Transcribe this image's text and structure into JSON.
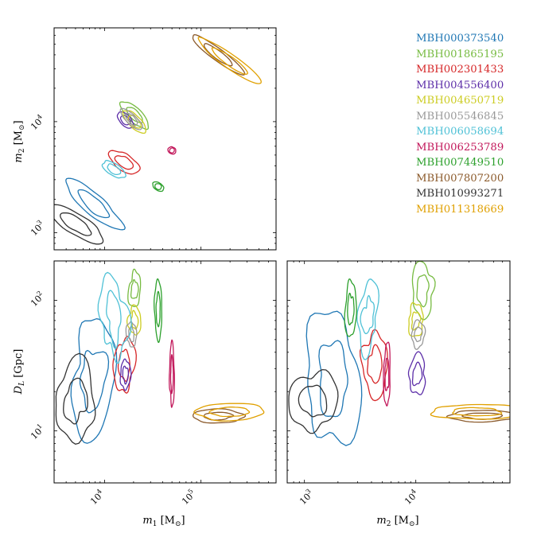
{
  "chart_data": {
    "type": "contour",
    "panels": [
      {
        "id": "m1_m2",
        "xlabel": "",
        "ylabel": "m_2 [M_⊙]",
        "ylabel_main": "m",
        "ylabel_sub": "2",
        "ylabel_unit": " [M",
        "ylabel_unit_sub": "⊙",
        "ylabel_close": "]",
        "xscale": "log",
        "yscale": "log",
        "xlim": [
          3000,
          600000
        ],
        "ylim": [
          700,
          70000
        ],
        "yticks": [
          {
            "base": "10",
            "exp": "3",
            "value": 1000
          },
          {
            "base": "10",
            "exp": "4",
            "value": 10000
          }
        ]
      },
      {
        "id": "m1_dl",
        "xlabel": "m_1 [M_⊙]",
        "xlabel_main": "m",
        "xlabel_sub": "1",
        "xlabel_unit": " [M",
        "xlabel_unit_sub": "⊙",
        "xlabel_close": "]",
        "ylabel": "D_L [Gpc]",
        "ylabel_main": "D",
        "ylabel_sub": "L",
        "ylabel_unit": " [Gpc]",
        "xscale": "log",
        "yscale": "log",
        "xlim": [
          3000,
          600000
        ],
        "ylim": [
          4,
          200
        ],
        "xticks": [
          {
            "base": "10",
            "exp": "4",
            "value": 10000
          },
          {
            "base": "10",
            "exp": "5",
            "value": 100000
          }
        ],
        "yticks": [
          {
            "base": "10",
            "exp": "1",
            "value": 10
          },
          {
            "base": "10",
            "exp": "2",
            "value": 100
          }
        ]
      },
      {
        "id": "m2_dl",
        "xlabel": "m_2 [M_⊙]",
        "xlabel_main": "m",
        "xlabel_sub": "2",
        "xlabel_unit": " [M",
        "xlabel_unit_sub": "⊙",
        "xlabel_close": "]",
        "ylabel": "",
        "xscale": "log",
        "yscale": "log",
        "xlim": [
          700,
          70000
        ],
        "ylim": [
          4,
          200
        ],
        "xticks": [
          {
            "base": "10",
            "exp": "3",
            "value": 1000
          },
          {
            "base": "10",
            "exp": "4",
            "value": 10000
          }
        ]
      }
    ],
    "legend_position": "top-right",
    "series": [
      {
        "name": "MBH000373540",
        "color": "#1f77b4",
        "m1_90": [
          [
            5200,
            1650
          ],
          [
            10500,
            1900
          ],
          [
            11000,
            3000
          ],
          [
            6000,
            4200
          ]
        ],
        "m1_dl": [
          7700,
          27,
          0.23,
          0.42
        ],
        "m2_dl": [
          1800,
          17,
          0.25,
          0.45
        ]
      },
      {
        "name": "MBH001865195",
        "color": "#77bb41",
        "m1": 20500,
        "m2": 11500,
        "dl": 120
      },
      {
        "name": "MBH002301433",
        "color": "#d62728",
        "m1": 16000,
        "m2": 4300,
        "dl": 32
      },
      {
        "name": "MBH004556400",
        "color": "#5c2ea8",
        "m1": 16500,
        "m2": 10300,
        "dl": 27
      },
      {
        "name": "MBH004650719",
        "color": "#cccc22",
        "m1": 20500,
        "m2": 10000,
        "dl": 70
      },
      {
        "name": "MBH005546845",
        "color": "#999999",
        "m1": 19000,
        "m2": 10500,
        "dl": 55
      },
      {
        "name": "MBH006058694",
        "color": "#4fc1d6",
        "m1": 12500,
        "m2": 3700,
        "dl": 75
      },
      {
        "name": "MBH006253789",
        "color": "#c2185b",
        "m1": 50000,
        "m2": 5500,
        "dl": 27
      },
      {
        "name": "MBH007449510",
        "color": "#2ca02c",
        "m1": 36000,
        "m2": 2600,
        "dl": 85
      },
      {
        "name": "MBH007807200",
        "color": "#8b5a2b",
        "m1": 150000,
        "m2": 40000,
        "dl": 13
      },
      {
        "name": "MBH010993271",
        "color": "#333333",
        "m1": 5000,
        "m2": 1200,
        "dl": 17
      },
      {
        "name": "MBH011318669",
        "color": "#e0a000",
        "m1": 200000,
        "m2": 35000,
        "dl": 14
      }
    ]
  }
}
